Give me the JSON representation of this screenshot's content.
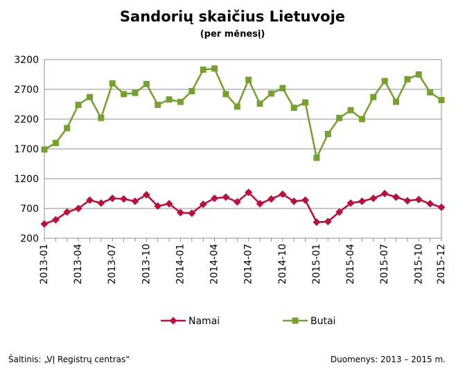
{
  "title": "Sandorių skaičius Lietuvoje",
  "subtitle": "(per mėnesį)",
  "footer": {
    "source": "Šaltinis: „VĮ Registrų centras“",
    "period": "Duomenys: 2013 – 2015 m."
  },
  "chart_data": {
    "type": "line",
    "title": "Sandorių skaičius Lietuvoje",
    "subtitle": "(per mėnesį)",
    "xlabel": "",
    "ylabel": "",
    "ylim": [
      200,
      3200
    ],
    "yticks": [
      200,
      700,
      1200,
      1700,
      2200,
      2700,
      3200
    ],
    "grid": true,
    "legend": "bottom",
    "x": [
      "2013-01",
      "2013-02",
      "2013-03",
      "2013-04",
      "2013-05",
      "2013-06",
      "2013-07",
      "2013-08",
      "2013-09",
      "2013-10",
      "2013-11",
      "2013-12",
      "2014-01",
      "2014-02",
      "2014-03",
      "2014-04",
      "2014-05",
      "2014-06",
      "2014-07",
      "2014-08",
      "2014-09",
      "2014-10",
      "2014-11",
      "2014-12",
      "2015-01",
      "2015-02",
      "2015-03",
      "2015-04",
      "2015-05",
      "2015-06",
      "2015-07",
      "2015-08",
      "2015-09",
      "2015-10",
      "2015-11",
      "2015-12"
    ],
    "xtick_labels": [
      "2013-01",
      "2013-04",
      "2013-07",
      "2013-10",
      "2014-01",
      "2014-04",
      "2014-07",
      "2014-10",
      "2015-01",
      "2015-04",
      "2015-07",
      "2015-10",
      "2015-12"
    ],
    "series": [
      {
        "name": "Namai",
        "color": "#B5123E",
        "marker": "diamond",
        "values": [
          440,
          510,
          640,
          700,
          840,
          790,
          870,
          860,
          820,
          930,
          740,
          780,
          630,
          620,
          770,
          870,
          890,
          810,
          970,
          780,
          860,
          940,
          820,
          840,
          470,
          480,
          640,
          790,
          820,
          870,
          950,
          890,
          830,
          850,
          780,
          720
        ]
      },
      {
        "name": "Butai",
        "color": "#77A032",
        "marker": "square",
        "values": [
          1690,
          1800,
          2050,
          2440,
          2570,
          2220,
          2800,
          2620,
          2640,
          2790,
          2440,
          2530,
          2490,
          2670,
          3030,
          3050,
          2620,
          2410,
          2860,
          2460,
          2630,
          2720,
          2390,
          2480,
          1550,
          1950,
          2220,
          2350,
          2200,
          2570,
          2840,
          2490,
          2870,
          2950,
          2650,
          2520
        ]
      }
    ]
  }
}
